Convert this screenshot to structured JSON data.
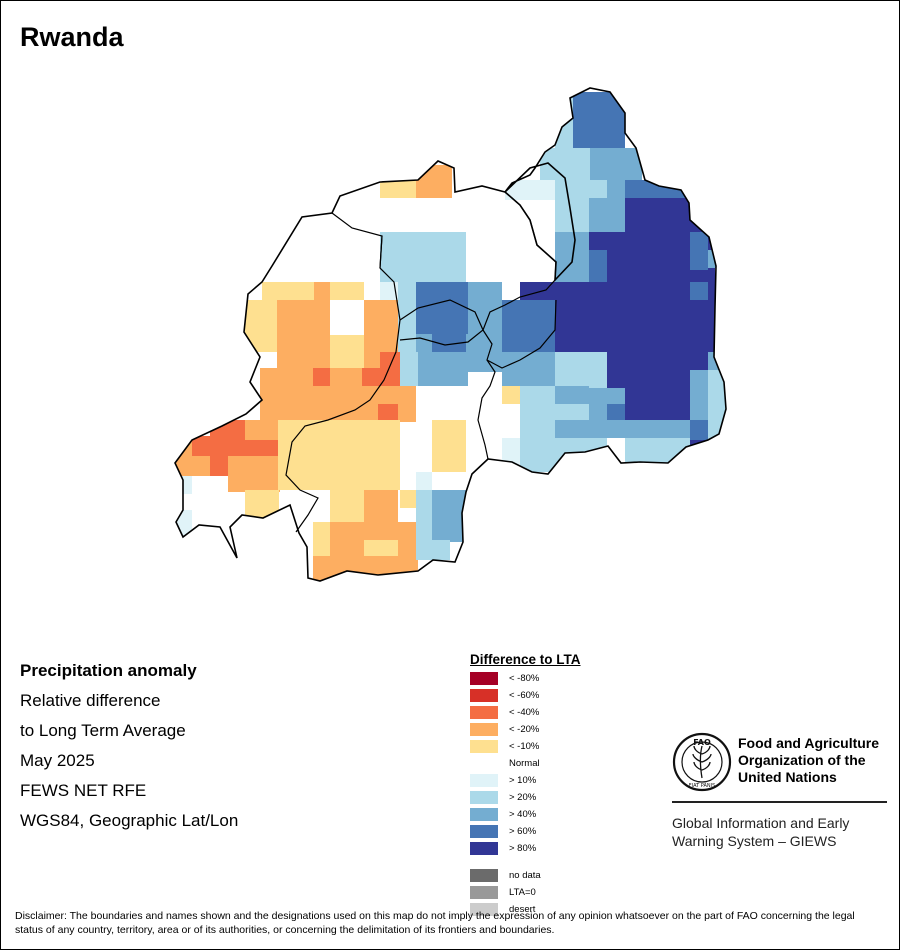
{
  "title": "Rwanda",
  "info": {
    "line1": "Precipitation anomaly",
    "line2": "Relative difference",
    "line3": "to Long Term Average",
    "line4": "May 2025",
    "line5": "FEWS NET RFE",
    "line6": "WGS84, Geographic Lat/Lon"
  },
  "legend": {
    "title": "Difference to LTA",
    "classes": [
      {
        "label": "< -80%",
        "color": "#a50026"
      },
      {
        "label": "< -60%",
        "color": "#d73027"
      },
      {
        "label": "< -40%",
        "color": "#f46d43"
      },
      {
        "label": "< -20%",
        "color": "#fdae61"
      },
      {
        "label": "< -10%",
        "color": "#fee090"
      },
      {
        "label": "Normal",
        "color": "#ffffff"
      },
      {
        "label": "> 10%",
        "color": "#e0f3f8"
      },
      {
        "label": "> 20%",
        "color": "#abd9e9"
      },
      {
        "label": "> 40%",
        "color": "#74add1"
      },
      {
        "label": "> 60%",
        "color": "#4575b4"
      },
      {
        "label": "> 80%",
        "color": "#313695"
      }
    ],
    "extra": [
      {
        "label": "no data",
        "color": "#6b6b6b"
      },
      {
        "label": "LTA=0",
        "color": "#999999"
      },
      {
        "label": "desert",
        "color": "#cccccc"
      }
    ]
  },
  "fao": {
    "name1": "Food and Agriculture",
    "name2": "Organization of the",
    "name3": "United Nations",
    "logo_letters": "FAO",
    "motto": "FIAT PANIS",
    "giews1": "Global Information and Early",
    "giews2": "Warning System – GIEWS"
  },
  "disclaimer": "Disclaimer: The boundaries and names shown and the designations used on this map do not imply the expression of any opinion whatsoever on the part of FAO concerning the legal status of any country, territory, area or of its authorities, or concerning the delimitation of its frontiers and boundaries."
}
